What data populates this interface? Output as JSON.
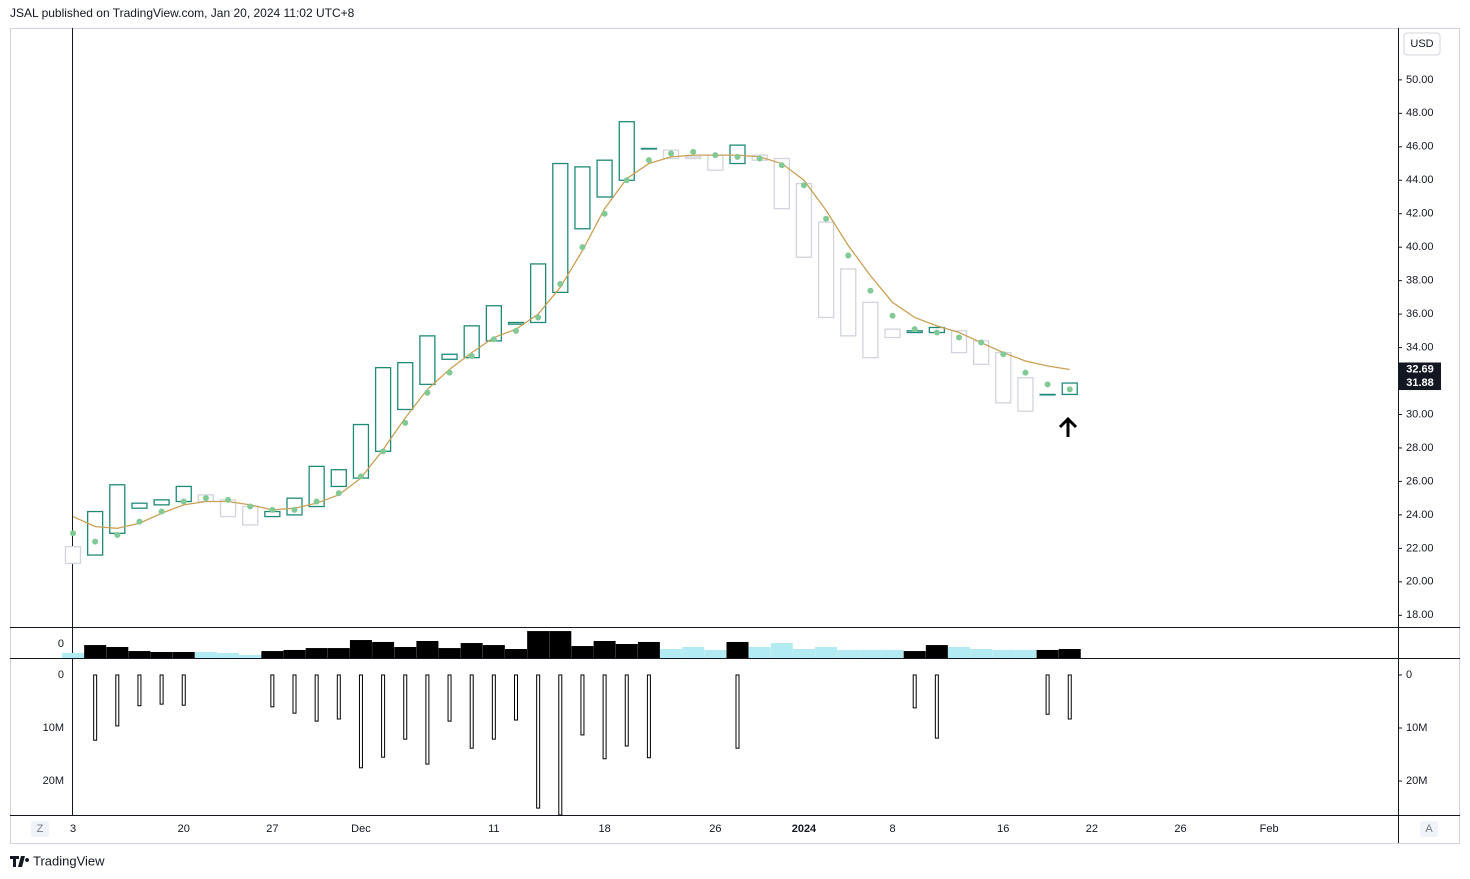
{
  "header": "JSAL published on TradingView.com, Jan 20, 2024 11:02 UTC+8",
  "footer": "TradingView",
  "currency": "USD",
  "buttons": [
    "Z",
    "A"
  ],
  "chart_data": [
    {
      "type": "candlestick",
      "categories": [
        "3",
        null,
        null,
        null,
        null,
        "20",
        null,
        null,
        null,
        "27",
        null,
        null,
        null,
        "Dec",
        null,
        null,
        null,
        null,
        null,
        "11",
        null,
        null,
        null,
        null,
        "18",
        null,
        null,
        null,
        null,
        "26",
        null,
        null,
        null,
        "2024",
        null,
        null,
        null,
        "8",
        null,
        null,
        null,
        null,
        "16",
        null,
        null,
        null,
        "22",
        null,
        null,
        null,
        "26",
        null,
        null,
        null,
        "Feb"
      ],
      "open": [
        22.1,
        21.6,
        22.9,
        24.4,
        24.6,
        24.8,
        25.2,
        24.9,
        24.5,
        23.9,
        24.0,
        24.5,
        25.7,
        26.2,
        27.8,
        30.3,
        31.8,
        33.3,
        33.4,
        34.4,
        35.4,
        35.5,
        37.3,
        41.1,
        43.0,
        44.0,
        45.9,
        45.8,
        45.4,
        45.5,
        45.0,
        45.5,
        45.3,
        43.8,
        41.5,
        38.7,
        36.7,
        35.1,
        34.9,
        34.9,
        35.0,
        34.4,
        33.7,
        32.2,
        31.2,
        31.2,
        null,
        null,
        null,
        null,
        null,
        null,
        null,
        null,
        null
      ],
      "close": [
        21.1,
        24.2,
        25.8,
        24.7,
        24.9,
        25.7,
        24.8,
        23.9,
        23.4,
        24.2,
        25.0,
        26.9,
        26.7,
        29.4,
        32.8,
        33.1,
        34.7,
        33.6,
        35.3,
        36.5,
        35.5,
        39.0,
        45.0,
        44.8,
        45.2,
        47.5,
        45.9,
        45.3,
        45.3,
        44.6,
        46.1,
        45.2,
        42.3,
        39.4,
        35.8,
        34.7,
        33.4,
        34.6,
        35.0,
        35.2,
        33.7,
        33.0,
        30.7,
        30.2,
        31.2,
        31.88,
        null,
        null,
        null,
        null,
        null,
        null,
        null,
        null,
        null
      ],
      "up_color": "#1f8a78",
      "down_color": "#d1d4dc",
      "line": {
        "color": "#c9a055",
        "values": [
          23.9,
          23.3,
          23.2,
          23.5,
          24.1,
          24.6,
          24.8,
          24.8,
          24.6,
          24.3,
          24.4,
          24.7,
          25.2,
          26.2,
          27.9,
          29.8,
          31.5,
          32.7,
          33.7,
          34.6,
          35.1,
          36.0,
          37.6,
          39.8,
          42.3,
          44.1,
          45.0,
          45.4,
          45.5,
          45.5,
          45.5,
          45.4,
          45.0,
          44.0,
          42.2,
          40.1,
          38.3,
          36.7,
          35.8,
          35.3,
          34.9,
          34.3,
          33.7,
          33.2,
          32.9,
          32.69,
          null,
          null,
          null,
          null,
          null,
          null,
          null,
          null,
          null
        ]
      },
      "dots": {
        "color": "#81c995",
        "values": [
          22.9,
          22.4,
          22.8,
          23.6,
          24.2,
          24.8,
          25.0,
          24.9,
          24.5,
          24.3,
          24.3,
          24.8,
          25.3,
          26.3,
          27.8,
          29.5,
          31.3,
          32.5,
          33.5,
          34.5,
          35.0,
          35.8,
          37.8,
          40.0,
          42.0,
          44.0,
          45.2,
          45.6,
          45.7,
          45.5,
          45.4,
          45.3,
          44.9,
          43.7,
          41.7,
          39.5,
          37.4,
          35.9,
          35.1,
          34.9,
          34.6,
          34.3,
          33.6,
          32.5,
          31.8,
          31.5,
          null,
          null,
          null,
          null,
          null,
          null,
          null,
          null,
          null
        ]
      },
      "ylim": [
        17.3,
        53.1
      ],
      "yticks": [
        {
          "value": 18,
          "label": "18.00"
        },
        {
          "value": 20,
          "label": "20.00"
        },
        {
          "value": 22,
          "label": "22.00"
        },
        {
          "value": 24,
          "label": "24.00"
        },
        {
          "value": 26,
          "label": "26.00"
        },
        {
          "value": 28,
          "label": "28.00"
        },
        {
          "value": 30,
          "label": "30.00"
        },
        {
          "value": 32,
          "label": "32.00"
        },
        {
          "value": 34,
          "label": "34.00"
        },
        {
          "value": 36,
          "label": "36.00"
        },
        {
          "value": 38,
          "label": "38.00"
        },
        {
          "value": 40,
          "label": "40.00"
        },
        {
          "value": 42,
          "label": "42.00"
        },
        {
          "value": 44,
          "label": "44.00"
        },
        {
          "value": 46,
          "label": "46.00"
        },
        {
          "value": 48,
          "label": "48.00"
        },
        {
          "value": 50,
          "label": "50.00"
        }
      ]
    },
    {
      "type": "bar",
      "values": [
        4.7,
        12.1,
        10.3,
        6.5,
        5.6,
        5.6,
        5.6,
        4.7,
        2.8,
        6.5,
        7.5,
        9.3,
        9.3,
        16.8,
        15.0,
        10.3,
        15.9,
        9.3,
        14.0,
        12.1,
        8.4,
        25.2,
        25.2,
        11.2,
        15.9,
        13.1,
        15.0,
        8.4,
        10.3,
        7.5,
        15.0,
        10.3,
        14.0,
        8.4,
        10.3,
        7.5,
        7.5,
        7.5,
        6.5,
        12.1,
        10.3,
        8.4,
        7.5,
        7.5,
        7.5,
        8.4,
        null,
        null,
        null,
        null,
        null,
        null,
        null,
        null,
        null
      ],
      "up_color": "#000000",
      "down_color": "#b2ebf2",
      "ylim": [
        0,
        29
      ],
      "yticks": [
        0
      ]
    },
    {
      "type": "bar",
      "inverted": true,
      "color": "#000000",
      "values": [
        null,
        12300000,
        9600000,
        5800000,
        5500000,
        5700000,
        null,
        null,
        null,
        6000000,
        7200000,
        8700000,
        8300000,
        17500000,
        15500000,
        12100000,
        16800000,
        8700000,
        13800000,
        12100000,
        8500000,
        25100000,
        26400000,
        11300000,
        15800000,
        13400000,
        15600000,
        null,
        null,
        null,
        13800000,
        null,
        null,
        null,
        null,
        null,
        null,
        null,
        6200000,
        11900000,
        null,
        null,
        null,
        null,
        7400000,
        8300000,
        null,
        null,
        null,
        null,
        null,
        null,
        null,
        null,
        null
      ],
      "ylim": [
        -3200000,
        26400000
      ],
      "yticks": [
        0,
        {
          "value": 10000000,
          "label": "10M"
        },
        {
          "value": 20000000,
          "label": "20M"
        }
      ]
    }
  ]
}
